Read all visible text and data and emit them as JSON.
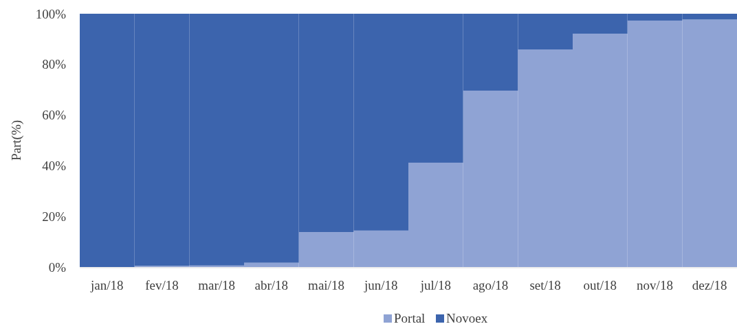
{
  "chart_data": {
    "type": "bar",
    "stacked": true,
    "ylabel": "Part(%)",
    "categories": [
      "jan/18",
      "fev/18",
      "mar/18",
      "abr/18",
      "mai/18",
      "jun/18",
      "jul/18",
      "ago/18",
      "set/18",
      "out/18",
      "nov/18",
      "dez/18"
    ],
    "series": [
      {
        "name": "Portal",
        "color": "#8fa3d4",
        "values": [
          0,
          0.5,
          0.6,
          1.7,
          13.8,
          14.4,
          41.2,
          69.6,
          85.9,
          92.1,
          97.3,
          97.7
        ]
      },
      {
        "name": "Novoex",
        "color": "#3c64ad",
        "values": [
          100,
          99.5,
          99.4,
          98.3,
          86.2,
          85.6,
          58.8,
          30.4,
          14.1,
          7.9,
          2.7,
          2.3
        ]
      }
    ],
    "ylim": [
      0,
      100
    ],
    "yticks": [
      {
        "value": 0,
        "label": "0%"
      },
      {
        "value": 20,
        "label": "20%"
      },
      {
        "value": 40,
        "label": "40%"
      },
      {
        "value": 60,
        "label": "60%"
      },
      {
        "value": 80,
        "label": "80%"
      },
      {
        "value": 100,
        "label": "100%"
      }
    ],
    "legend": "bottom",
    "grid": false
  }
}
